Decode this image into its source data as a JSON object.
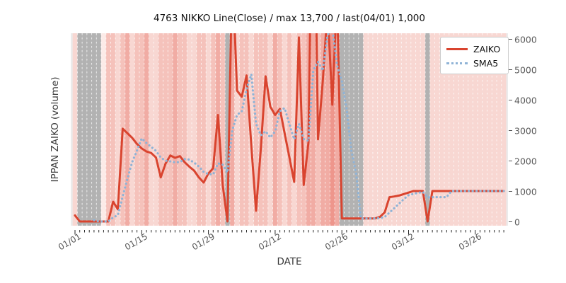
{
  "chart_data": {
    "type": "line",
    "title": "4763 NIKKO Line(Close) / max 13,700 / last(04/01) 1,000",
    "xlabel": "DATE",
    "ylabel": "IPPAN ZAIKO (volume)",
    "x_start_date": "01/01",
    "x_end_date": "04/01",
    "x_tick_labels": [
      "01/01",
      "01/15",
      "01/29",
      "02/12",
      "02/26",
      "03/12",
      "03/26"
    ],
    "x_tick_days": [
      0,
      14,
      28,
      42,
      56,
      70,
      84
    ],
    "y_ticks": [
      0,
      1000,
      2000,
      3000,
      4000,
      5000,
      6000
    ],
    "ylim": [
      -150,
      6186
    ],
    "grid": false,
    "legend_position": "upper right",
    "max_value": 13700,
    "last_value": 1000,
    "series": [
      {
        "name": "ZAIKO",
        "style": "solid",
        "color": "#d9442f",
        "values": [
          200,
          0,
          0,
          0,
          0,
          0,
          0,
          0,
          650,
          400,
          3050,
          2900,
          2750,
          2550,
          2400,
          2300,
          2250,
          2100,
          1450,
          1900,
          2170,
          2090,
          2150,
          1950,
          1800,
          1670,
          1450,
          1280,
          1580,
          1750,
          3500,
          1200,
          0,
          8500,
          4300,
          4100,
          4800,
          2500,
          350,
          2400,
          4770,
          3770,
          3500,
          3700,
          2900,
          2100,
          1300,
          6050,
          1200,
          2600,
          13700,
          2700,
          4600,
          7000,
          3840,
          7500,
          100,
          100,
          100,
          100,
          100,
          100,
          100,
          100,
          150,
          300,
          800,
          820,
          850,
          900,
          950,
          1000,
          1000,
          1000,
          0,
          1000,
          1000,
          1000,
          1000,
          1000,
          1000,
          1000,
          1000,
          1000,
          1000,
          1000,
          1000,
          1000,
          1000,
          1000,
          1000
        ]
      },
      {
        "name": "SMA5",
        "style": "dotted",
        "color": "#8fb3d6",
        "window": 5,
        "derived_from": "ZAIKO"
      }
    ],
    "background": {
      "stripe_levels": [
        1,
        "g",
        "g",
        "g",
        "g",
        "g",
        0,
        2,
        2,
        1,
        2,
        3,
        1,
        2,
        2,
        3,
        1,
        1,
        2,
        2,
        2,
        3,
        2,
        2,
        1,
        1,
        2,
        2,
        1,
        2,
        3,
        2,
        "g",
        3,
        1,
        2,
        2,
        1,
        2,
        2,
        2,
        1,
        3,
        2,
        1,
        2,
        1,
        2,
        2,
        3,
        3,
        2,
        3,
        3,
        4,
        3,
        "g",
        "g",
        "g",
        "g",
        "g",
        1,
        1,
        1,
        1,
        1,
        1,
        1,
        1,
        1,
        1,
        1,
        1,
        1,
        "g",
        1,
        1,
        1,
        1,
        1,
        1,
        1,
        1,
        1,
        1,
        1,
        1,
        1,
        1,
        1,
        1
      ],
      "stripe_colors": {
        "0": "#fcebe8",
        "1": "#f8d7d2",
        "2": "#f5c2bb",
        "3": "#f1aca4",
        "4": "#ee968c",
        "g": "#b2b2b2"
      },
      "separator_color": "rgba(255,255,255,0.75)",
      "plot_bg": "#ebebeb"
    }
  },
  "legend": {
    "items": [
      {
        "label": "ZAIKO"
      },
      {
        "label": "SMA5"
      }
    ]
  }
}
